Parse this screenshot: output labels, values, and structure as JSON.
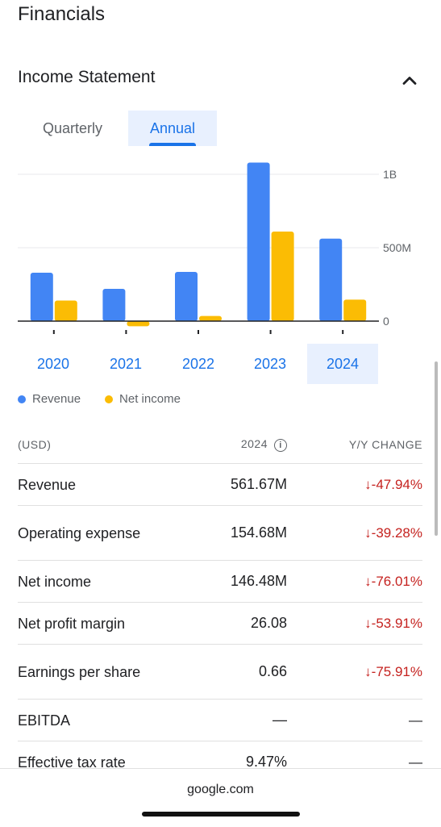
{
  "section_title": "Financials",
  "subsection_title": "Income Statement",
  "tabs": [
    {
      "label": "Quarterly",
      "active": false
    },
    {
      "label": "Annual",
      "active": true
    }
  ],
  "chart_data": {
    "type": "bar",
    "categories": [
      "2020",
      "2021",
      "2022",
      "2023",
      "2024"
    ],
    "selected_category": "2024",
    "series": [
      {
        "name": "Revenue",
        "color": "#4285f4",
        "values": [
          330,
          220,
          335,
          1080,
          561.67
        ]
      },
      {
        "name": "Net income",
        "color": "#fbbc04",
        "values": [
          140,
          -35,
          35,
          610,
          146.48
        ]
      }
    ],
    "y_ticks": [
      "1B",
      "500M",
      "0"
    ],
    "y_tick_values": [
      1000,
      500,
      0
    ],
    "ylim": [
      -60,
      1100
    ],
    "unit": "millions USD",
    "grid": true,
    "legend_position": "bottom"
  },
  "legend": [
    {
      "label": "Revenue",
      "color": "#4285f4"
    },
    {
      "label": "Net income",
      "color": "#fbbc04"
    }
  ],
  "table": {
    "headers": {
      "metric": "(USD)",
      "year": "2024",
      "change": "Y/Y CHANGE"
    },
    "rows": [
      {
        "metric": "Revenue",
        "value": "561.67M",
        "change": "↓-47.94%"
      },
      {
        "metric": "Operating expense",
        "value": "154.68M",
        "change": "↓-39.28%"
      },
      {
        "metric": "Net income",
        "value": "146.48M",
        "change": "↓-76.01%"
      },
      {
        "metric": "Net profit margin",
        "value": "26.08",
        "change": "↓-53.91%"
      },
      {
        "metric": "Earnings per share",
        "value": "0.66",
        "change": "↓-75.91%"
      },
      {
        "metric": "EBITDA",
        "value": "—",
        "change": "—"
      },
      {
        "metric": "Effective tax rate",
        "value": "9.47%",
        "change": "—"
      }
    ]
  },
  "footer": {
    "url": "google.com"
  }
}
